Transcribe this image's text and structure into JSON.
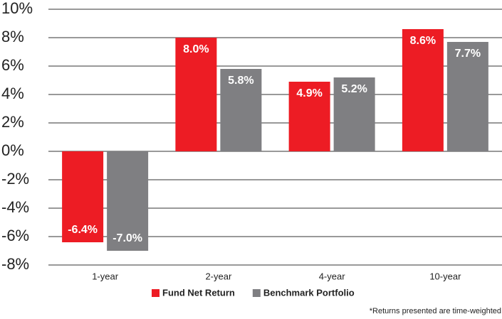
{
  "chart_data": {
    "type": "bar",
    "categories": [
      "1-year",
      "2-year",
      "4-year",
      "10-year"
    ],
    "series": [
      {
        "name": "Fund Net Return",
        "color": "#ed1c24",
        "values": [
          -6.4,
          8.0,
          4.9,
          8.6
        ],
        "value_labels": [
          "-6.4%",
          "8.0%",
          "4.9%",
          "8.6%"
        ]
      },
      {
        "name": "Benchmark Portfolio",
        "color": "#7f7f82",
        "values": [
          -7.0,
          5.8,
          5.2,
          7.7
        ],
        "value_labels": [
          "-7.0%",
          "5.8%",
          "5.2%",
          "7.7%"
        ]
      }
    ],
    "ylim": [
      -8,
      10
    ],
    "yticks": [
      {
        "value": -8,
        "label": "-8%"
      },
      {
        "value": -6,
        "label": "-6%"
      },
      {
        "value": -4,
        "label": "-4%"
      },
      {
        "value": -2,
        "label": "-2%"
      },
      {
        "value": 0,
        "label": "0%"
      },
      {
        "value": 2,
        "label": "2%"
      },
      {
        "value": 4,
        "label": "4%"
      },
      {
        "value": 6,
        "label": "6%"
      },
      {
        "value": 8,
        "label": "8%"
      },
      {
        "value": 10,
        "label": "10%"
      }
    ],
    "grid": true,
    "footnote": "*Returns presented are time-weighted"
  }
}
